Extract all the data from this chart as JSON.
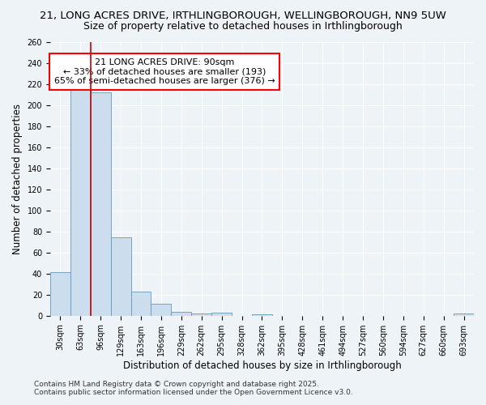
{
  "title_line1": "21, LONG ACRES DRIVE, IRTHLINGBOROUGH, WELLINGBOROUGH, NN9 5UW",
  "title_line2": "Size of property relative to detached houses in Irthlingborough",
  "xlabel": "Distribution of detached houses by size in Irthlingborough",
  "ylabel": "Number of detached properties",
  "categories": [
    "30sqm",
    "63sqm",
    "96sqm",
    "129sqm",
    "163sqm",
    "196sqm",
    "229sqm",
    "262sqm",
    "295sqm",
    "328sqm",
    "362sqm",
    "395sqm",
    "428sqm",
    "461sqm",
    "494sqm",
    "527sqm",
    "560sqm",
    "594sqm",
    "627sqm",
    "660sqm",
    "693sqm"
  ],
  "values": [
    41,
    216,
    212,
    74,
    23,
    11,
    4,
    2,
    3,
    0,
    1,
    0,
    0,
    0,
    0,
    0,
    0,
    0,
    0,
    0,
    2
  ],
  "bar_color": "#ccdded",
  "bar_edge_color": "#6699bb",
  "red_line_x": 1.5,
  "annotation_line1": "21 LONG ACRES DRIVE: 90sqm",
  "annotation_line2": "← 33% of detached houses are smaller (193)",
  "annotation_line3": "65% of semi-detached houses are larger (376) →",
  "annotation_box_color": "white",
  "annotation_border_color": "red",
  "red_line_color": "#cc0000",
  "ylim": [
    0,
    260
  ],
  "yticks": [
    0,
    20,
    40,
    60,
    80,
    100,
    120,
    140,
    160,
    180,
    200,
    220,
    240,
    260
  ],
  "footer_line1": "Contains HM Land Registry data © Crown copyright and database right 2025.",
  "footer_line2": "Contains public sector information licensed under the Open Government Licence v3.0.",
  "bg_color": "#eef3f8",
  "plot_bg_color": "#eef3f8",
  "title_fontsize": 9.5,
  "subtitle_fontsize": 9,
  "axis_label_fontsize": 8.5,
  "tick_fontsize": 7,
  "annotation_fontsize": 8,
  "footer_fontsize": 6.5,
  "grid_color": "#ffffff"
}
